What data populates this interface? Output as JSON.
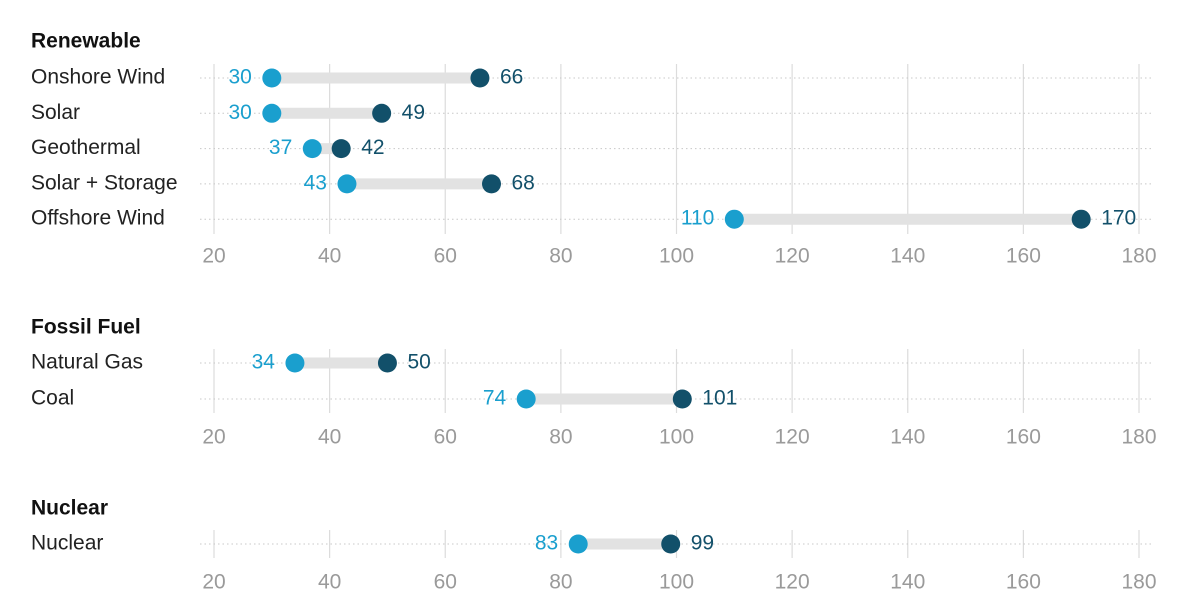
{
  "chart_data": [
    {
      "type": "dumbbell",
      "title": "Renewable",
      "categories": [
        "Onshore Wind",
        "Solar",
        "Geothermal",
        "Solar + Storage",
        "Offshore Wind"
      ],
      "series": [
        {
          "values": [
            30,
            30,
            37,
            43,
            110
          ]
        },
        {
          "values": [
            66,
            49,
            42,
            68,
            170
          ]
        }
      ],
      "xlim": [
        20,
        180
      ],
      "xticks": [
        20,
        40,
        60,
        80,
        100,
        120,
        140,
        160,
        180
      ],
      "grid": true
    },
    {
      "type": "dumbbell",
      "title": "Fossil Fuel",
      "categories": [
        "Natural Gas",
        "Coal"
      ],
      "series": [
        {
          "values": [
            34,
            74
          ]
        },
        {
          "values": [
            50,
            101
          ]
        }
      ],
      "xlim": [
        20,
        180
      ],
      "xticks": [
        20,
        40,
        60,
        80,
        100,
        120,
        140,
        160,
        180
      ],
      "grid": true
    },
    {
      "type": "dumbbell",
      "title": "Nuclear",
      "categories": [
        "Nuclear"
      ],
      "series": [
        {
          "values": [
            83
          ]
        },
        {
          "values": [
            99
          ]
        }
      ],
      "xlim": [
        20,
        180
      ],
      "xticks": [
        20,
        40,
        60,
        80,
        100,
        120,
        140,
        160,
        180
      ],
      "grid": true
    }
  ],
  "colors": {
    "low": "#1a9fce",
    "high": "#12506a",
    "bar": "#e2e2e2",
    "grid": "#dcdcdc",
    "row_dots": "#c8c8c8",
    "tick_text": "#9a9a9a"
  }
}
